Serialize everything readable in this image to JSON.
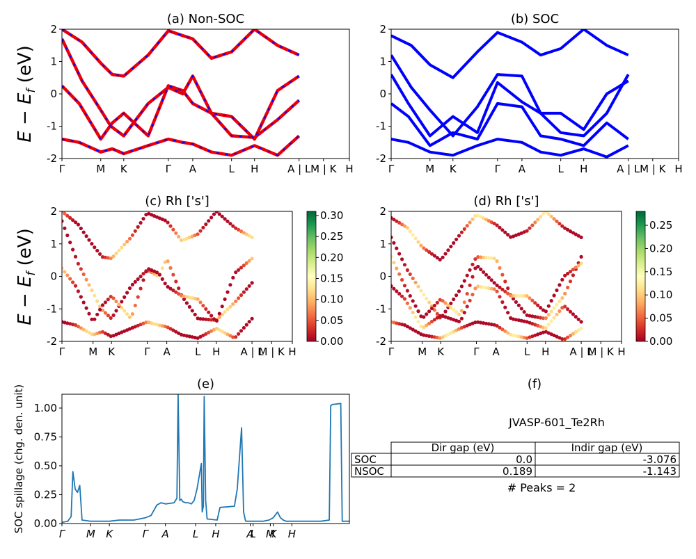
{
  "figure": {
    "ylabel_main": "E − E_f (eV)",
    "ylabel_main_sym": "E − E",
    "ylabel_main_sub": "f",
    "ylabel_main_unit": " (eV)",
    "ylabel_spill": "SOC spillage (chg. den. unit)",
    "panel_e_title": "(e)",
    "panel_f_title": "(f)",
    "panel_f_name": "JVASP-601_Te2Rh",
    "panel_f_peaks": "# Peaks = 2",
    "gap_table": {
      "headers": [
        "",
        "Dir gap (eV)",
        "Indir gap (eV)"
      ],
      "rows": [
        {
          "label": "SOC",
          "dir": "0.0",
          "indir": "-3.076"
        },
        {
          "label": "NSOC",
          "dir": "0.189",
          "indir": "-1.143"
        }
      ]
    }
  },
  "chart_data": [
    {
      "type": "line",
      "title": "(a) Non-SOC",
      "ylim": [
        -2,
        2
      ],
      "yticks": [
        2,
        1,
        0,
        -1,
        -2
      ],
      "xticks": [
        {
          "label": "Γ",
          "x": 0
        },
        {
          "label": "M",
          "x": 0.135
        },
        {
          "label": "K",
          "x": 0.215
        },
        {
          "label": "Γ",
          "x": 0.37
        },
        {
          "label": "A",
          "x": 0.455
        },
        {
          "label": "L",
          "x": 0.59
        },
        {
          "label": "H",
          "x": 0.67
        },
        {
          "label": "A | L",
          "x": 0.825
        },
        {
          "label": "M | K",
          "x": 0.91
        },
        {
          "label": "H",
          "x": 1.0
        }
      ],
      "series": [
        {
          "color": "#e8000b",
          "dash_color": "#0000ff",
          "x": [
            0,
            0.07,
            0.135,
            0.17,
            0.215,
            0.3,
            0.37,
            0.42,
            0.455,
            0.52,
            0.59,
            0.67,
            0.75,
            0.825
          ],
          "y": [
            1.7,
            0.4,
            -0.5,
            -1.0,
            -1.3,
            -0.3,
            0.2,
            0.0,
            0.55,
            -0.6,
            -1.3,
            -1.35,
            -0.8,
            -0.2
          ]
        },
        {
          "color": "#e8000b",
          "dash_color": "#0000ff",
          "x": [
            0,
            0.06,
            0.135,
            0.175,
            0.215,
            0.3,
            0.37,
            0.42,
            0.455,
            0.52,
            0.59,
            0.67,
            0.75,
            0.825
          ],
          "y": [
            0.25,
            -0.3,
            -1.4,
            -0.9,
            -0.6,
            -1.3,
            0.25,
            0.1,
            -0.3,
            -0.6,
            -0.7,
            -1.4,
            0.1,
            0.55
          ]
        },
        {
          "color": "#e8000b",
          "dash_color": "#0000ff",
          "x": [
            0,
            0.06,
            0.135,
            0.175,
            0.215,
            0.3,
            0.37,
            0.42,
            0.455,
            0.52,
            0.59,
            0.67,
            0.75,
            0.825
          ],
          "y": [
            -1.4,
            -1.5,
            -1.8,
            -1.7,
            -1.85,
            -1.6,
            -1.4,
            -1.5,
            -1.55,
            -1.8,
            -1.9,
            -1.6,
            -1.9,
            -1.3
          ]
        },
        {
          "color": "#e8000b",
          "dash_color": "#0000ff",
          "x": [
            0,
            0.07,
            0.135,
            0.175,
            0.215,
            0.3,
            0.37,
            0.455,
            0.52,
            0.59,
            0.67,
            0.75,
            0.825
          ],
          "y": [
            2.0,
            1.6,
            0.95,
            0.6,
            0.55,
            1.2,
            1.95,
            1.7,
            1.1,
            1.3,
            2.0,
            1.5,
            1.2
          ]
        }
      ]
    },
    {
      "type": "line",
      "title": "(b) SOC",
      "ylim": [
        -2,
        2
      ],
      "yticks": [
        2,
        1,
        0,
        -1,
        -2
      ],
      "xticks": [
        {
          "label": "Γ",
          "x": 0
        },
        {
          "label": "M",
          "x": 0.135
        },
        {
          "label": "K",
          "x": 0.215
        },
        {
          "label": "Γ",
          "x": 0.37
        },
        {
          "label": "A",
          "x": 0.455
        },
        {
          "label": "L",
          "x": 0.59
        },
        {
          "label": "H",
          "x": 0.67
        },
        {
          "label": "A | L",
          "x": 0.825
        },
        {
          "label": "M | K",
          "x": 0.91
        },
        {
          "label": "H",
          "x": 1.0
        }
      ],
      "series": [
        {
          "color": "#0000ff",
          "x": [
            0,
            0.07,
            0.135,
            0.215,
            0.3,
            0.37,
            0.455,
            0.52,
            0.59,
            0.67,
            0.75,
            0.825
          ],
          "y": [
            1.2,
            0.2,
            -0.5,
            -1.3,
            -0.4,
            0.6,
            0.55,
            -0.6,
            -1.2,
            -1.3,
            -0.6,
            0.6
          ]
        },
        {
          "color": "#0000ff",
          "x": [
            0,
            0.06,
            0.135,
            0.215,
            0.3,
            0.37,
            0.455,
            0.52,
            0.59,
            0.67,
            0.75,
            0.825
          ],
          "y": [
            0.6,
            -0.3,
            -1.3,
            -0.7,
            -1.2,
            0.35,
            -0.25,
            -0.6,
            -0.6,
            -1.1,
            0.0,
            0.4
          ]
        },
        {
          "color": "#0000ff",
          "x": [
            0,
            0.06,
            0.135,
            0.215,
            0.3,
            0.37,
            0.455,
            0.52,
            0.59,
            0.67,
            0.75,
            0.825
          ],
          "y": [
            -0.3,
            -0.7,
            -1.6,
            -1.2,
            -1.4,
            -0.3,
            -0.4,
            -1.3,
            -1.4,
            -1.6,
            -0.9,
            -1.4
          ]
        },
        {
          "color": "#0000ff",
          "x": [
            0,
            0.06,
            0.135,
            0.215,
            0.3,
            0.37,
            0.455,
            0.52,
            0.59,
            0.67,
            0.75,
            0.825
          ],
          "y": [
            -1.4,
            -1.5,
            -1.8,
            -1.9,
            -1.6,
            -1.4,
            -1.5,
            -1.8,
            -1.9,
            -1.7,
            -1.95,
            -1.6
          ]
        },
        {
          "color": "#0000ff",
          "x": [
            0,
            0.07,
            0.135,
            0.215,
            0.3,
            0.37,
            0.455,
            0.52,
            0.59,
            0.67,
            0.75,
            0.825
          ],
          "y": [
            1.8,
            1.5,
            0.9,
            0.5,
            1.3,
            1.9,
            1.6,
            1.2,
            1.4,
            2.0,
            1.5,
            1.2
          ]
        }
      ]
    },
    {
      "type": "scatter",
      "title": "(c)  Rh ['s']",
      "ylim": [
        -2,
        2
      ],
      "yticks": [
        2,
        1,
        0,
        -1,
        -2
      ],
      "colorbar": {
        "min": 0.0,
        "max": 0.31,
        "ticks": [
          "0.30",
          "0.25",
          "0.20",
          "0.15",
          "0.10",
          "0.05",
          "0.00"
        ],
        "tick_values": [
          0.3,
          0.25,
          0.2,
          0.15,
          0.1,
          0.05,
          0.0
        ]
      },
      "xticks": [
        {
          "label": "Γ",
          "x": 0
        },
        {
          "label": "M",
          "x": 0.135
        },
        {
          "label": "K",
          "x": 0.215
        },
        {
          "label": "Γ",
          "x": 0.37
        },
        {
          "label": "A",
          "x": 0.455
        },
        {
          "label": "L",
          "x": 0.59
        },
        {
          "label": "H",
          "x": 0.67
        },
        {
          "label": "A | L",
          "x": 0.825
        },
        {
          "label": "M | K",
          "x": 0.91
        },
        {
          "label": "H",
          "x": 1.0
        }
      ],
      "bands": [
        {
          "x": [
            0,
            0.07,
            0.135,
            0.17,
            0.215,
            0.3,
            0.37,
            0.42,
            0.455,
            0.52,
            0.59,
            0.67,
            0.75,
            0.825
          ],
          "y": [
            1.7,
            0.4,
            -0.5,
            -1.0,
            -1.3,
            -0.3,
            0.2,
            0.0,
            0.55,
            -0.6,
            -1.3,
            -1.35,
            -0.8,
            -0.2
          ]
        },
        {
          "x": [
            0,
            0.06,
            0.135,
            0.175,
            0.215,
            0.3,
            0.37,
            0.42,
            0.455,
            0.52,
            0.59,
            0.67,
            0.75,
            0.825
          ],
          "y": [
            0.25,
            -0.3,
            -1.4,
            -0.9,
            -0.6,
            -1.3,
            0.25,
            0.1,
            -0.3,
            -0.6,
            -0.7,
            -1.4,
            0.1,
            0.55
          ]
        },
        {
          "x": [
            0,
            0.06,
            0.135,
            0.175,
            0.215,
            0.3,
            0.37,
            0.42,
            0.455,
            0.52,
            0.59,
            0.67,
            0.75,
            0.825
          ],
          "y": [
            -1.4,
            -1.5,
            -1.8,
            -1.7,
            -1.85,
            -1.6,
            -1.4,
            -1.5,
            -1.55,
            -1.8,
            -1.9,
            -1.6,
            -1.9,
            -1.3
          ]
        },
        {
          "x": [
            0,
            0.07,
            0.135,
            0.175,
            0.215,
            0.3,
            0.37,
            0.455,
            0.52,
            0.59,
            0.67,
            0.75,
            0.825
          ],
          "y": [
            2.0,
            1.6,
            0.95,
            0.6,
            0.55,
            1.2,
            1.95,
            1.7,
            1.1,
            1.3,
            2.0,
            1.5,
            1.2
          ]
        }
      ]
    },
    {
      "type": "scatter",
      "title": "(d) Rh ['s']",
      "ylim": [
        -2,
        2
      ],
      "yticks": [
        2,
        1,
        0,
        -1,
        -2
      ],
      "colorbar": {
        "min": 0.0,
        "max": 0.28,
        "ticks": [
          "0.25",
          "0.20",
          "0.15",
          "0.10",
          "0.05",
          "0.00"
        ],
        "tick_values": [
          0.25,
          0.2,
          0.15,
          0.1,
          0.05,
          0.0
        ]
      },
      "xticks": [
        {
          "label": "Γ",
          "x": 0
        },
        {
          "label": "M",
          "x": 0.135
        },
        {
          "label": "K",
          "x": 0.215
        },
        {
          "label": "Γ",
          "x": 0.37
        },
        {
          "label": "A",
          "x": 0.455
        },
        {
          "label": "L",
          "x": 0.59
        },
        {
          "label": "H",
          "x": 0.67
        },
        {
          "label": "A | L",
          "x": 0.825
        },
        {
          "label": "M | K",
          "x": 0.91
        },
        {
          "label": "H",
          "x": 1.0
        }
      ],
      "bands": [
        {
          "x": [
            0,
            0.07,
            0.135,
            0.215,
            0.3,
            0.37,
            0.455,
            0.52,
            0.59,
            0.67,
            0.75,
            0.825
          ],
          "y": [
            1.2,
            0.2,
            -0.5,
            -1.3,
            -0.4,
            0.6,
            0.55,
            -0.6,
            -1.2,
            -1.3,
            -0.6,
            0.6
          ]
        },
        {
          "x": [
            0,
            0.06,
            0.135,
            0.215,
            0.3,
            0.37,
            0.455,
            0.52,
            0.59,
            0.67,
            0.75,
            0.825
          ],
          "y": [
            0.6,
            -0.3,
            -1.3,
            -0.7,
            -1.2,
            0.35,
            -0.25,
            -0.6,
            -0.6,
            -1.1,
            0.0,
            0.4
          ]
        },
        {
          "x": [
            0,
            0.06,
            0.135,
            0.215,
            0.3,
            0.37,
            0.455,
            0.52,
            0.59,
            0.67,
            0.75,
            0.825
          ],
          "y": [
            -0.3,
            -0.7,
            -1.6,
            -1.2,
            -1.4,
            -0.3,
            -0.4,
            -1.3,
            -1.4,
            -1.6,
            -0.9,
            -1.4
          ]
        },
        {
          "x": [
            0,
            0.06,
            0.135,
            0.215,
            0.3,
            0.37,
            0.455,
            0.52,
            0.59,
            0.67,
            0.75,
            0.825
          ],
          "y": [
            -1.4,
            -1.5,
            -1.8,
            -1.9,
            -1.6,
            -1.4,
            -1.5,
            -1.8,
            -1.9,
            -1.7,
            -1.95,
            -1.6
          ]
        },
        {
          "x": [
            0,
            0.07,
            0.135,
            0.215,
            0.3,
            0.37,
            0.455,
            0.52,
            0.59,
            0.67,
            0.75,
            0.825
          ],
          "y": [
            1.8,
            1.5,
            0.9,
            0.5,
            1.3,
            1.9,
            1.6,
            1.2,
            1.4,
            2.0,
            1.5,
            1.2
          ]
        }
      ]
    },
    {
      "type": "line",
      "title": "(e)",
      "ylabel": "SOC spillage (chg. den. unit)",
      "ylim": [
        0,
        1.12
      ],
      "yticks": [
        1.0,
        0.75,
        0.5,
        0.25,
        0.0
      ],
      "ytick_labels": [
        "1.00",
        "0.75",
        "0.50",
        "0.25",
        "0.00"
      ],
      "xticks": [
        {
          "label": "Γ",
          "x": 0
        },
        {
          "label": "M",
          "x": 0.1
        },
        {
          "label": "K",
          "x": 0.165
        },
        {
          "label": "Γ",
          "x": 0.29
        },
        {
          "label": "A",
          "x": 0.36
        },
        {
          "label": "L",
          "x": 0.465
        },
        {
          "label": "H",
          "x": 0.535
        },
        {
          "label": "A",
          "x": 0.655
        },
        {
          "label": "L",
          "x": 0.665
        },
        {
          "label": "M",
          "x": 0.725
        },
        {
          "label": "K",
          "x": 0.735
        },
        {
          "label": "H",
          "x": 0.8
        }
      ],
      "series": [
        {
          "color": "#1f77b4",
          "x": [
            0,
            0.02,
            0.032,
            0.038,
            0.046,
            0.054,
            0.062,
            0.07,
            0.1,
            0.165,
            0.2,
            0.25,
            0.29,
            0.31,
            0.33,
            0.345,
            0.36,
            0.39,
            0.4,
            0.404,
            0.41,
            0.415,
            0.42,
            0.43,
            0.44,
            0.45,
            0.46,
            0.47,
            0.485,
            0.488,
            0.492,
            0.495,
            0.5,
            0.505,
            0.54,
            0.55,
            0.6,
            0.61,
            0.625,
            0.632,
            0.638,
            0.64,
            0.645,
            0.65,
            0.7,
            0.72,
            0.735,
            0.75,
            0.76,
            0.77,
            0.78,
            0.8,
            0.9,
            0.93,
            0.935,
            0.94,
            0.97,
            0.975,
            0.98,
            1.0
          ],
          "y": [
            0.01,
            0.02,
            0.06,
            0.45,
            0.3,
            0.27,
            0.33,
            0.03,
            0.02,
            0.02,
            0.03,
            0.03,
            0.05,
            0.07,
            0.16,
            0.18,
            0.17,
            0.18,
            0.22,
            1.12,
            0.2,
            0.21,
            0.19,
            0.18,
            0.18,
            0.17,
            0.2,
            0.3,
            0.52,
            0.1,
            0.15,
            1.1,
            0.2,
            0.04,
            0.03,
            0.14,
            0.15,
            0.3,
            0.83,
            0.1,
            0.03,
            0.02,
            0.02,
            0.02,
            0.02,
            0.03,
            0.05,
            0.1,
            0.05,
            0.03,
            0.02,
            0.02,
            0.02,
            0.03,
            1.02,
            1.03,
            1.04,
            0.02,
            0.02,
            0.02
          ]
        }
      ]
    }
  ]
}
